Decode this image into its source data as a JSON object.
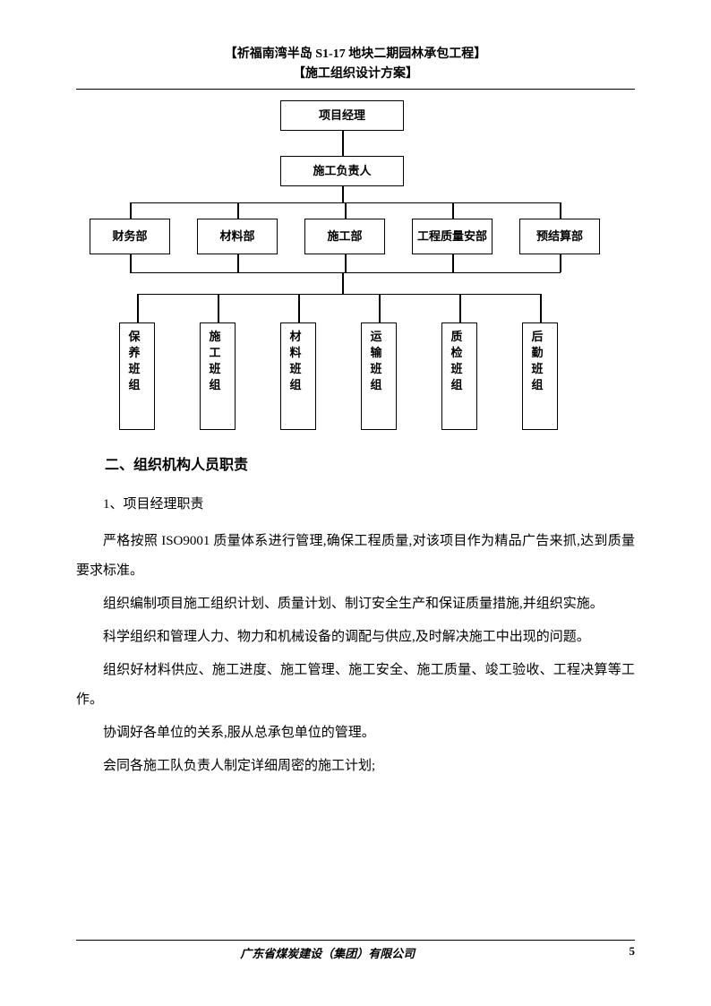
{
  "header": {
    "line1": "【祈福南湾半岛 S1-17 地块二期园林承包工程】",
    "line2": "【施工组织设计方案】"
  },
  "chart": {
    "top1": "项目经理",
    "top2": "施工负责人",
    "mid": [
      "财务部",
      "材料部",
      "施工部",
      "工程质量安部",
      "预结算部"
    ],
    "bot": [
      "保养班组",
      "施工班组",
      "材料班组",
      "运输班组",
      "质检班组",
      "后勤班组"
    ],
    "border_color": "#000000",
    "background_color": "#ffffff",
    "font_size": 13,
    "font_weight": "bold"
  },
  "content": {
    "section_title": "二、组织机构人员职责",
    "sub_title": "1、项目经理职责",
    "paragraphs": [
      "严格按照 ISO9001 质量体系进行管理,确保工程质量,对该项目作为精品广告来抓,达到质量要求标准。",
      "组织编制项目施工组织计划、质量计划、制订安全生产和保证质量措施,并组织实施。",
      "科学组织和管理人力、物力和机械设备的调配与供应,及时解决施工中出现的问题。",
      "组织好材料供应、施工进度、施工管理、施工安全、施工质量、竣工验收、工程决算等工作。",
      "协调好各单位的关系,服从总承包单位的管理。",
      "会同各施工队负责人制定详细周密的施工计划;"
    ]
  },
  "footer": {
    "company": "广东省煤炭建设（集团）有限公司",
    "page": "5"
  }
}
